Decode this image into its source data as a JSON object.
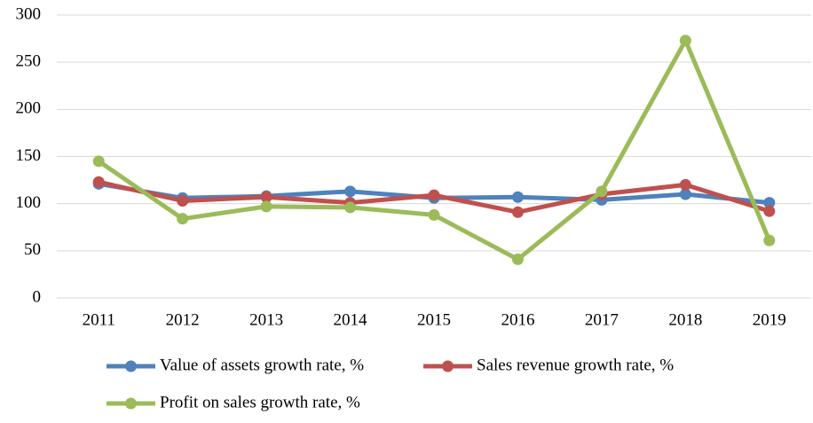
{
  "chart_data": {
    "type": "line",
    "categories": [
      "2011",
      "2012",
      "2013",
      "2014",
      "2015",
      "2016",
      "2017",
      "2018",
      "2019"
    ],
    "series": [
      {
        "name": "Value of assets growth rate, %",
        "color": "#4f81bd",
        "values": [
          121,
          106,
          108,
          113,
          106,
          107,
          104,
          110,
          101
        ]
      },
      {
        "name": "Sales revenue growth rate, %",
        "color": "#c0504d",
        "values": [
          123,
          103,
          107,
          101,
          109,
          91,
          110,
          120,
          92
        ]
      },
      {
        "name": "Profit on sales growth rate, %",
        "color": "#9bbb59",
        "values": [
          145,
          84,
          97,
          96,
          88,
          41,
          113,
          273,
          61
        ]
      }
    ],
    "ylim": [
      0,
      300
    ],
    "yticks": [
      0,
      50,
      100,
      150,
      200,
      250,
      300
    ],
    "grid": true,
    "legend": "bottom"
  }
}
